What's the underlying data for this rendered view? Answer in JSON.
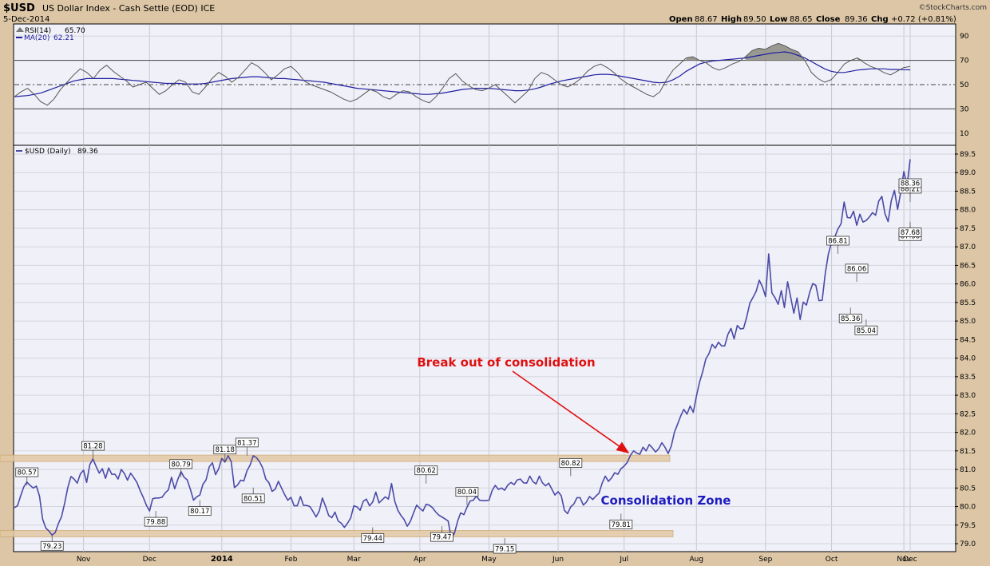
{
  "header": {
    "symbol": "$USD",
    "description": "US Dollar Index - Cash Settle (EOD) ICE",
    "date": "5-Dec-2014",
    "brand": "©StockCharts.com",
    "quote": [
      {
        "label": "Open",
        "value": "88.67"
      },
      {
        "label": "High",
        "value": "89.50"
      },
      {
        "label": "Low",
        "value": "88.65"
      },
      {
        "label": "Close",
        "value": "89.36"
      },
      {
        "label": "Chg",
        "value": "+0.72 (+0.81%)"
      }
    ]
  },
  "colors": {
    "frame": "#dcc6a6",
    "plot_bg": "#f0f0f8",
    "price_line": "#4a4aa8",
    "rsi_line": "#555555",
    "ma_line": "#1f1fa0",
    "zone_fill": "#e2c9a3",
    "annotation_red": "#e01010",
    "annotation_blue": "#1c1cc0"
  },
  "chart_data": [
    {
      "type": "line",
      "panel": "RSI",
      "legend": [
        {
          "name": "RSI(14)",
          "value": "65.70"
        },
        {
          "name": "MA(20)",
          "value": "62.21"
        }
      ],
      "ylim": [
        0,
        100
      ],
      "yticks": [
        "90",
        "70",
        "50",
        "30",
        "10"
      ],
      "reference_lines": [
        70,
        50,
        30
      ],
      "series": [
        {
          "name": "RSI(14)",
          "values": [
            40,
            44,
            47,
            42,
            36,
            33,
            38,
            46,
            52,
            58,
            63,
            60,
            55,
            62,
            66,
            61,
            57,
            53,
            48,
            50,
            52,
            47,
            42,
            45,
            50,
            54,
            52,
            44,
            42,
            48,
            55,
            60,
            57,
            52,
            56,
            62,
            68,
            65,
            60,
            54,
            58,
            63,
            65,
            60,
            53,
            50,
            48,
            46,
            44,
            41,
            38,
            36,
            38,
            42,
            46,
            44,
            40,
            38,
            42,
            45,
            44,
            40,
            37,
            35,
            40,
            47,
            55,
            59,
            53,
            49,
            46,
            45,
            47,
            50,
            45,
            40,
            35,
            40,
            45,
            55,
            60,
            58,
            54,
            50,
            48,
            51,
            55,
            61,
            65,
            67,
            64,
            60,
            55,
            51,
            48,
            45,
            42,
            40,
            44,
            54,
            62,
            67,
            72,
            73,
            70,
            68,
            64,
            62,
            64,
            67,
            69,
            73,
            78,
            80,
            79,
            82,
            84,
            82,
            79,
            77,
            70,
            60,
            55,
            52,
            54,
            60,
            67,
            70,
            72,
            68,
            65,
            63,
            60,
            58,
            61,
            64,
            65
          ]
        },
        {
          "name": "MA(20)",
          "values": [
            40,
            40.5,
            41,
            42,
            43,
            45,
            47,
            49,
            51,
            53,
            54,
            55,
            55,
            55,
            55,
            55,
            54.5,
            54,
            53.5,
            53,
            52.5,
            52,
            51.5,
            51,
            51,
            51,
            50.5,
            50.5,
            50.5,
            51,
            52,
            53,
            54,
            55,
            55.5,
            56,
            56.5,
            56.5,
            56,
            55.5,
            55,
            55,
            54.5,
            54,
            53.5,
            53,
            52.5,
            52,
            51,
            50,
            49,
            48,
            47,
            46.5,
            46,
            45.5,
            45,
            44.5,
            44,
            43.5,
            43,
            42.5,
            42,
            42,
            42.5,
            43,
            44,
            45,
            46,
            46.5,
            47,
            47,
            47,
            46.5,
            46,
            45.5,
            45,
            45,
            45.5,
            46.5,
            48,
            50,
            51.5,
            53,
            54,
            55,
            56,
            57,
            58,
            58.5,
            58.5,
            58,
            57,
            56,
            55,
            54,
            53,
            52,
            51.5,
            52,
            54,
            57,
            61,
            64,
            67,
            68.5,
            69.5,
            70,
            70.5,
            71,
            71.5,
            72,
            73,
            74,
            75,
            76,
            76.5,
            77,
            76,
            74,
            72,
            69,
            66,
            63,
            61,
            60,
            60,
            61,
            62,
            62.5,
            63,
            63,
            63,
            62.5,
            62.5,
            62.3,
            62.2
          ]
        }
      ]
    },
    {
      "type": "line",
      "panel": "Price",
      "legend": [
        {
          "name": "$USD (Daily)",
          "value": "89.36"
        }
      ],
      "ylim": [
        79.0,
        89.5
      ],
      "yticks": [
        "89.5",
        "89.0",
        "88.5",
        "88.0",
        "87.5",
        "87.0",
        "86.5",
        "86.0",
        "85.5",
        "85.0",
        "84.5",
        "84.0",
        "83.5",
        "83.0",
        "82.5",
        "82.0",
        "81.5",
        "81.0",
        "80.5",
        "80.0",
        "79.5",
        "79.0"
      ],
      "x_labels": [
        "Nov",
        "Dec",
        "2014",
        "Feb",
        "Mar",
        "Apr",
        "May",
        "Jun",
        "Jul",
        "Aug",
        "Sep",
        "Oct",
        "Nov",
        "Dec"
      ],
      "start": "2013-10-02",
      "x_label_dates": [
        "2013-11-01",
        "2013-12-02",
        "2014-01-02",
        "2014-02-03",
        "2014-03-03",
        "2014-04-01",
        "2014-05-01",
        "2014-06-02",
        "2014-07-01",
        "2014-08-01",
        "2014-09-02",
        "2014-10-01",
        "2014-11-03",
        "2014-12-01"
      ],
      "series": [
        {
          "name": "$USD (Daily)",
          "values": [
            79.97,
            80.02,
            80.29,
            80.53,
            80.66,
            80.57,
            80.5,
            80.55,
            80.28,
            79.66,
            79.42,
            79.34,
            79.23,
            79.3,
            79.54,
            79.73,
            80.09,
            80.51,
            80.81,
            80.74,
            80.63,
            80.88,
            80.98,
            80.65,
            81.13,
            81.28,
            81.08,
            80.9,
            81.02,
            80.76,
            81.04,
            80.87,
            80.87,
            80.74,
            81.0,
            80.89,
            80.71,
            80.9,
            80.78,
            80.65,
            80.43,
            80.25,
            80.04,
            79.88,
            80.21,
            80.23,
            80.23,
            80.25,
            80.37,
            80.45,
            80.79,
            80.48,
            80.73,
            80.94,
            80.79,
            80.72,
            80.46,
            80.17,
            80.26,
            80.31,
            80.6,
            80.72,
            81.07,
            81.18,
            80.86,
            81.02,
            81.3,
            81.2,
            81.37,
            81.21,
            80.51,
            80.58,
            80.71,
            80.69,
            80.96,
            81.12,
            81.37,
            81.32,
            81.21,
            81.04,
            80.74,
            80.64,
            80.41,
            80.47,
            80.68,
            80.5,
            80.32,
            80.17,
            80.25,
            80.02,
            80.02,
            80.27,
            80.03,
            80.03,
            80.0,
            79.87,
            79.72,
            79.88,
            80.23,
            80.01,
            79.76,
            79.7,
            79.85,
            79.61,
            79.55,
            79.44,
            79.55,
            79.69,
            80.02,
            79.99,
            79.9,
            80.14,
            80.2,
            80.02,
            80.12,
            80.39,
            80.1,
            80.18,
            80.26,
            80.2,
            80.62,
            80.15,
            79.9,
            79.76,
            79.65,
            79.47,
            79.6,
            79.83,
            80.04,
            79.95,
            79.88,
            80.06,
            80.04,
            79.97,
            79.86,
            79.77,
            79.72,
            79.67,
            79.61,
            79.15,
            79.28,
            79.6,
            79.83,
            79.78,
            79.98,
            80.15,
            80.17,
            80.28,
            80.17,
            80.16,
            80.16,
            80.17,
            80.43,
            80.57,
            80.46,
            80.5,
            80.44,
            80.58,
            80.65,
            80.59,
            80.72,
            80.74,
            80.64,
            80.63,
            80.82,
            80.67,
            80.61,
            80.82,
            80.64,
            80.56,
            80.63,
            80.47,
            80.31,
            80.4,
            80.29,
            79.9,
            79.81,
            79.99,
            80.07,
            80.24,
            80.24,
            80.04,
            80.12,
            80.27,
            80.19,
            80.28,
            80.36,
            80.63,
            80.82,
            80.68,
            80.77,
            80.91,
            80.87,
            81.02,
            81.09,
            81.19,
            81.38,
            81.5,
            81.44,
            81.41,
            81.6,
            81.5,
            81.67,
            81.58,
            81.47,
            81.56,
            81.72,
            81.6,
            81.43,
            81.63,
            82.0,
            82.22,
            82.44,
            82.62,
            82.49,
            82.71,
            82.54,
            82.98,
            83.35,
            83.64,
            83.98,
            84.12,
            84.37,
            84.27,
            84.43,
            84.33,
            84.33,
            84.64,
            84.8,
            84.52,
            84.88,
            84.79,
            84.8,
            85.11,
            85.48,
            85.64,
            85.8,
            86.1,
            85.92,
            85.66,
            86.81,
            85.76,
            85.63,
            85.45,
            85.82,
            85.36,
            86.06,
            85.64,
            85.21,
            85.62,
            85.04,
            85.51,
            85.43,
            85.76,
            86.01,
            85.96,
            85.55,
            85.56,
            86.29,
            86.81,
            87.12,
            87.26,
            87.48,
            87.62,
            88.21,
            87.79,
            87.78,
            87.96,
            87.58,
            87.88,
            87.67,
            87.71,
            87.8,
            87.92,
            87.85,
            88.23,
            88.36,
            87.89,
            87.68,
            88.25,
            88.52,
            88.01,
            88.47,
            89.03,
            88.64,
            89.36
          ]
        }
      ],
      "zones": [
        {
          "name": "upper",
          "value": 81.3
        },
        {
          "name": "lower",
          "value": 79.27
        }
      ],
      "annotations": [
        {
          "date": "2013-10-08",
          "value": 80.57,
          "text": "80.57",
          "side": "above"
        },
        {
          "date": "2013-10-18",
          "value": 79.23,
          "text": "79.23",
          "side": "below"
        },
        {
          "date": "2013-11-06",
          "value": 81.28,
          "text": "81.28",
          "side": "above"
        },
        {
          "date": "2013-12-04",
          "value": 79.88,
          "text": "79.88",
          "side": "below"
        },
        {
          "date": "2013-12-16",
          "value": 80.79,
          "text": "80.79",
          "side": "above"
        },
        {
          "date": "2013-12-24",
          "value": 80.17,
          "text": "80.17",
          "side": "below"
        },
        {
          "date": "2014-01-03",
          "value": 81.18,
          "text": "81.18",
          "side": "above"
        },
        {
          "date": "2014-01-14",
          "value": 81.37,
          "text": "81.37",
          "side": "above"
        },
        {
          "date": "2014-01-16",
          "value": 80.51,
          "text": "80.51",
          "side": "below"
        },
        {
          "date": "2014-03-11",
          "value": 79.44,
          "text": "79.44",
          "side": "below"
        },
        {
          "date": "2014-04-03",
          "value": 80.62,
          "text": "80.62",
          "side": "above"
        },
        {
          "date": "2014-04-10",
          "value": 79.47,
          "text": "79.47",
          "side": "below"
        },
        {
          "date": "2014-04-22",
          "value": 80.04,
          "text": "80.04",
          "side": "above"
        },
        {
          "date": "2014-05-08",
          "value": 79.15,
          "text": "79.15",
          "side": "below"
        },
        {
          "date": "2014-06-06",
          "value": 80.82,
          "text": "80.82",
          "side": "above"
        },
        {
          "date": "2014-06-30",
          "value": 79.81,
          "text": "79.81",
          "side": "below"
        },
        {
          "date": "2014-10-03",
          "value": 86.81,
          "text": "86.81",
          "side": "above"
        },
        {
          "date": "2014-10-09",
          "value": 85.36,
          "text": "85.36",
          "side": "below"
        },
        {
          "date": "2014-10-13",
          "value": 86.06,
          "text": "86.06",
          "side": "above"
        },
        {
          "date": "2014-10-16",
          "value": 85.04,
          "text": "85.04",
          "side": "below"
        },
        {
          "date": "2014-11-07",
          "value": 88.21,
          "text": "88.21",
          "side": "above"
        },
        {
          "date": "2014-11-13",
          "value": 87.58,
          "text": "87.58",
          "side": "below"
        },
        {
          "date": "2014-11-24",
          "value": 88.36,
          "text": "88.36",
          "side": "above"
        },
        {
          "date": "2014-11-26",
          "value": 87.68,
          "text": "87.68",
          "side": "below"
        }
      ],
      "callouts": [
        {
          "name": "breakout",
          "text": "Break out of consolidation"
        },
        {
          "name": "zone",
          "text": "Consolidation Zone"
        }
      ]
    }
  ]
}
